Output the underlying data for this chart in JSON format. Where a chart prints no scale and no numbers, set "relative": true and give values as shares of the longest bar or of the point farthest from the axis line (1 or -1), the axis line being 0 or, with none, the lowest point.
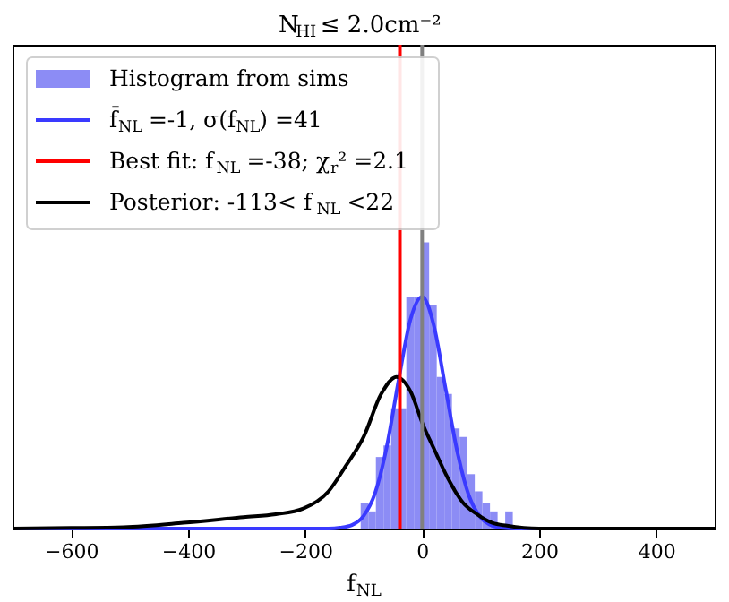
{
  "chart_data": {
    "type": "histogram",
    "title": "N$_{HI}$ ≤ 2.0cm⁻²",
    "xlabel": "f$_{NL}$",
    "relative": true,
    "xlim": [
      -700,
      500
    ],
    "xticks": [
      -600,
      -400,
      -200,
      0,
      200,
      400
    ],
    "tick_labels": "x",
    "legend": "top left",
    "grid": false,
    "series": [
      {
        "name": "Histogram from sims",
        "type": "histogram",
        "color": "#8c8cf5",
        "bins": [
          -105,
          -92,
          -79,
          -66,
          -53,
          -40,
          -27,
          -14,
          -1,
          12,
          25,
          38,
          51,
          64,
          77,
          90,
          103,
          116,
          129,
          142,
          155
        ],
        "values": [
          0.09,
          0.06,
          0.25,
          0.29,
          0.42,
          0.42,
          0.81,
          0.81,
          1,
          0.78,
          0.53,
          0.47,
          0.35,
          0.32,
          0.19,
          0.13,
          0.09,
          0.06,
          0,
          0.06
        ]
      },
      {
        "name": "f̄$_{NL}$ =-1, σ(f$_{NL}$) =41",
        "type": "line",
        "color": "#3a3aff",
        "x": [
          -700,
          -160,
          -140,
          -120,
          -100,
          -80,
          -60,
          -40,
          -20,
          0,
          20,
          40,
          60,
          80,
          100,
          120,
          140,
          160,
          500
        ],
        "values": [
          0,
          0,
          0.003,
          0.012,
          0.044,
          0.126,
          0.29,
          0.52,
          0.73,
          0.81,
          0.71,
          0.49,
          0.27,
          0.115,
          0.039,
          0.01,
          0.002,
          0,
          0
        ]
      },
      {
        "name": "Posterior: -113< f$_{NL}$ <22",
        "type": "line",
        "color": "#000000",
        "x": [
          -700,
          -600,
          -510,
          -408,
          -305,
          -250,
          -203,
          -160,
          -130,
          -100,
          -70,
          -44,
          -20,
          2,
          20,
          43,
          70,
          94,
          120,
          145,
          200,
          500
        ],
        "values": [
          0,
          0.002,
          0.005,
          0.02,
          0.04,
          0.05,
          0.07,
          0.13,
          0.22,
          0.32,
          0.47,
          0.53,
          0.48,
          0.36,
          0.28,
          0.18,
          0.09,
          0.05,
          0.02,
          0.01,
          0,
          0
        ]
      }
    ],
    "ref_lines": [
      {
        "axis": "x",
        "value": -38,
        "label": "Best fit: f$_{NL}$ =-38; χ$_{r}$² =2.1",
        "color": "#ff0000"
      },
      {
        "axis": "x",
        "value": 0,
        "color": "#808080"
      }
    ]
  }
}
